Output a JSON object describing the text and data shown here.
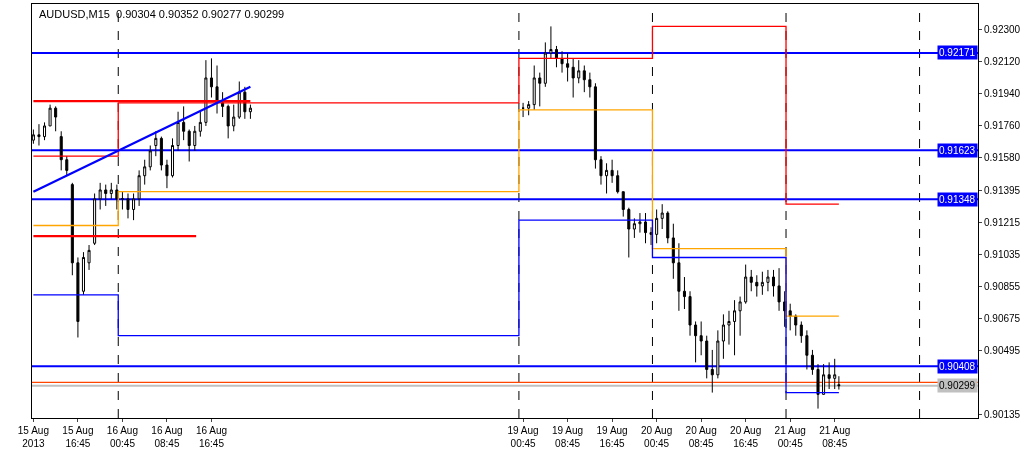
{
  "chart_data": {
    "type": "candlestick",
    "title": "AUDUSD,M15  0.90304 0.90352 0.90277 0.90299",
    "xlim": [
      "2013-08-15T08:30",
      "2013-08-22T10:30"
    ],
    "xticks": [
      {
        "value": "2013-08-15T08:45",
        "label": "15 Aug 2013"
      },
      {
        "value": "2013-08-15T16:45",
        "label": "15 Aug 16:45"
      },
      {
        "value": "2013-08-16T00:45",
        "label": "16 Aug 00:45"
      },
      {
        "value": "2013-08-16T08:45",
        "label": "16 Aug 08:45"
      },
      {
        "value": "2013-08-16T16:45",
        "label": "16 Aug 16:45"
      },
      {
        "value": "2013-08-19T00:45",
        "label": "19 Aug 00:45"
      },
      {
        "value": "2013-08-19T08:45",
        "label": "19 Aug 08:45"
      },
      {
        "value": "2013-08-19T16:45",
        "label": "19 Aug 16:45"
      },
      {
        "value": "2013-08-20T00:45",
        "label": "20 Aug 00:45"
      },
      {
        "value": "2013-08-20T08:45",
        "label": "20 Aug 08:45"
      },
      {
        "value": "2013-08-20T16:45",
        "label": "20 Aug 16:45"
      },
      {
        "value": "2013-08-21T00:45",
        "label": "21 Aug 00:45"
      },
      {
        "value": "2013-08-21T08:45",
        "label": "21 Aug 08:45"
      }
    ],
    "ylim": [
      0.90117,
      0.92446
    ],
    "yticks": [
      {
        "value": 0.923,
        "label": "0.92300"
      },
      {
        "value": 0.9212,
        "label": "0.92120"
      },
      {
        "value": 0.9194,
        "label": "0.91940"
      },
      {
        "value": 0.9176,
        "label": "0.91760"
      },
      {
        "value": 0.9158,
        "label": "0.91580"
      },
      {
        "value": 0.91395,
        "label": "0.91395"
      },
      {
        "value": 0.91215,
        "label": "0.91215"
      },
      {
        "value": 0.91035,
        "label": "0.91035"
      },
      {
        "value": 0.90855,
        "label": "0.90855"
      },
      {
        "value": 0.90675,
        "label": "0.90675"
      },
      {
        "value": 0.90495,
        "label": "0.90495"
      },
      {
        "value": 0.90135,
        "label": "0.90135"
      }
    ],
    "ref_lines": [
      {
        "axis": "x",
        "value": "2013-08-16T00:00",
        "color": "#000000",
        "line_style": "dashed"
      },
      {
        "axis": "x",
        "value": "2013-08-19T00:00",
        "color": "#000000",
        "line_style": "dashed"
      },
      {
        "axis": "x",
        "value": "2013-08-20T00:00",
        "color": "#000000",
        "line_style": "dashed"
      },
      {
        "axis": "x",
        "value": "2013-08-21T00:00",
        "color": "#000000",
        "line_style": "dashed"
      },
      {
        "axis": "x",
        "value": "2013-08-22T00:00",
        "color": "#000000",
        "line_style": "dashed"
      },
      {
        "axis": "y",
        "value": 0.92171,
        "label": "0.92171",
        "color": "#0000ff",
        "line_style": "solid"
      },
      {
        "axis": "y",
        "value": 0.91623,
        "label": "0.91623",
        "color": "#0000ff",
        "line_style": "solid"
      },
      {
        "axis": "y",
        "value": 0.91348,
        "label": "0.91348",
        "color": "#0000ff",
        "line_style": "solid"
      },
      {
        "axis": "y",
        "value": 0.90408,
        "label": "0.90408",
        "color": "#0000ff",
        "line_style": "solid"
      },
      {
        "axis": "y",
        "value": 0.90317,
        "color": "#ff4500",
        "line_style": "solid"
      },
      {
        "axis": "y",
        "value": 0.90299,
        "label": "0.90299",
        "color": "#c0c0c0",
        "line_style": "solid"
      }
    ],
    "series": [
      {
        "color": "#000000",
        "x": [
          "2013-08-15T08:45",
          "2013-08-15T09:45",
          "2013-08-15T10:45",
          "2013-08-15T11:45",
          "2013-08-15T12:45",
          "2013-08-15T13:45",
          "2013-08-15T14:45",
          "2013-08-15T15:45",
          "2013-08-15T16:45",
          "2013-08-15T17:45",
          "2013-08-15T18:45",
          "2013-08-15T19:45",
          "2013-08-15T20:45",
          "2013-08-15T21:45",
          "2013-08-15T22:45",
          "2013-08-15T23:45",
          "2013-08-16T00:45",
          "2013-08-16T01:45",
          "2013-08-16T02:45",
          "2013-08-16T03:45",
          "2013-08-16T04:45",
          "2013-08-16T05:45",
          "2013-08-16T06:45",
          "2013-08-16T07:45",
          "2013-08-16T08:45",
          "2013-08-16T09:45",
          "2013-08-16T10:45",
          "2013-08-16T11:45",
          "2013-08-16T12:45",
          "2013-08-16T13:45",
          "2013-08-16T14:45",
          "2013-08-16T15:45",
          "2013-08-16T16:45",
          "2013-08-16T17:45",
          "2013-08-16T18:45",
          "2013-08-16T19:45",
          "2013-08-16T20:45",
          "2013-08-16T21:45",
          "2013-08-16T22:45",
          "2013-08-16T23:45",
          "2013-08-19T00:45",
          "2013-08-19T01:45",
          "2013-08-19T02:45",
          "2013-08-19T03:45",
          "2013-08-19T04:45",
          "2013-08-19T05:45",
          "2013-08-19T06:45",
          "2013-08-19T07:45",
          "2013-08-19T08:45",
          "2013-08-19T09:45",
          "2013-08-19T10:45",
          "2013-08-19T11:45",
          "2013-08-19T12:45",
          "2013-08-19T13:45",
          "2013-08-19T14:45",
          "2013-08-19T15:45",
          "2013-08-19T16:45",
          "2013-08-19T17:45",
          "2013-08-19T18:45",
          "2013-08-19T19:45",
          "2013-08-19T20:45",
          "2013-08-19T21:45",
          "2013-08-19T22:45",
          "2013-08-19T23:45",
          "2013-08-20T00:45",
          "2013-08-20T01:45",
          "2013-08-20T02:45",
          "2013-08-20T03:45",
          "2013-08-20T04:45",
          "2013-08-20T05:45",
          "2013-08-20T06:45",
          "2013-08-20T07:45",
          "2013-08-20T08:45",
          "2013-08-20T09:45",
          "2013-08-20T10:45",
          "2013-08-20T11:45",
          "2013-08-20T12:45",
          "2013-08-20T13:45",
          "2013-08-20T14:45",
          "2013-08-20T15:45",
          "2013-08-20T16:45",
          "2013-08-20T17:45",
          "2013-08-20T18:45",
          "2013-08-20T19:45",
          "2013-08-20T20:45",
          "2013-08-20T21:45",
          "2013-08-20T22:45",
          "2013-08-20T23:45",
          "2013-08-21T00:45",
          "2013-08-21T01:45",
          "2013-08-21T02:45",
          "2013-08-21T03:45",
          "2013-08-21T04:45",
          "2013-08-21T05:45",
          "2013-08-21T06:45",
          "2013-08-21T07:45",
          "2013-08-21T08:45",
          "2013-08-21T09:30"
        ],
        "ohlc": [
          [
            0.9168,
            0.9174,
            0.9166,
            0.9171
          ],
          [
            0.9171,
            0.9177,
            0.9165,
            0.917
          ],
          [
            0.917,
            0.9178,
            0.9168,
            0.9176
          ],
          [
            0.9176,
            0.9188,
            0.9176,
            0.9186
          ],
          [
            0.9186,
            0.9187,
            0.9173,
            0.9181
          ],
          [
            0.917,
            0.9173,
            0.9151,
            0.9157
          ],
          [
            0.9157,
            0.9159,
            0.9148,
            0.9151
          ],
          [
            0.9143,
            0.9144,
            0.9092,
            0.9099
          ],
          [
            0.9099,
            0.9102,
            0.9057,
            0.9066
          ],
          [
            0.9083,
            0.9105,
            0.9081,
            0.9102
          ],
          [
            0.9099,
            0.9109,
            0.9095,
            0.9106
          ],
          [
            0.911,
            0.9138,
            0.9109,
            0.9135
          ],
          [
            0.9135,
            0.9144,
            0.9129,
            0.914
          ],
          [
            0.914,
            0.9143,
            0.9131,
            0.9138
          ],
          [
            0.9138,
            0.9144,
            0.9135,
            0.914
          ],
          [
            0.914,
            0.9143,
            0.9129,
            0.9135
          ],
          [
            0.9135,
            0.9139,
            0.9129,
            0.9135
          ],
          [
            0.9135,
            0.9138,
            0.9124,
            0.9129
          ],
          [
            0.9129,
            0.9138,
            0.9123,
            0.9135
          ],
          [
            0.9135,
            0.9151,
            0.9131,
            0.9148
          ],
          [
            0.9148,
            0.9157,
            0.9143,
            0.9153
          ],
          [
            0.9153,
            0.9165,
            0.9151,
            0.9162
          ],
          [
            0.9165,
            0.9173,
            0.9159,
            0.9169
          ],
          [
            0.9169,
            0.917,
            0.9151,
            0.9154
          ],
          [
            0.9154,
            0.9157,
            0.9141,
            0.9148
          ],
          [
            0.9148,
            0.9169,
            0.9147,
            0.9165
          ],
          [
            0.9165,
            0.9184,
            0.9162,
            0.9178
          ],
          [
            0.9178,
            0.9187,
            0.9168,
            0.9173
          ],
          [
            0.9173,
            0.9174,
            0.9156,
            0.9165
          ],
          [
            0.9165,
            0.9176,
            0.9162,
            0.9173
          ],
          [
            0.9173,
            0.9184,
            0.917,
            0.9178
          ],
          [
            0.9178,
            0.9213,
            0.9176,
            0.9203
          ],
          [
            0.9203,
            0.9214,
            0.9192,
            0.9198
          ],
          [
            0.9198,
            0.921,
            0.9183,
            0.9189
          ],
          [
            0.9189,
            0.9195,
            0.9181,
            0.9187
          ],
          [
            0.9187,
            0.9188,
            0.9169,
            0.9176
          ],
          [
            0.9176,
            0.9188,
            0.9173,
            0.9181
          ],
          [
            0.9181,
            0.9201,
            0.918,
            0.9195
          ],
          [
            0.9195,
            0.9198,
            0.918,
            0.9184
          ],
          [
            0.9184,
            0.9188,
            0.918,
            0.9186
          ],
          [
            0.9186,
            0.9189,
            0.9181,
            0.9186
          ],
          [
            0.9186,
            0.919,
            0.9182,
            0.9188
          ],
          [
            0.9188,
            0.921,
            0.9185,
            0.9203
          ],
          [
            0.9203,
            0.9206,
            0.9187,
            0.92
          ],
          [
            0.92,
            0.9223,
            0.9198,
            0.9217
          ],
          [
            0.9217,
            0.9232,
            0.9214,
            0.9219
          ],
          [
            0.9219,
            0.9221,
            0.9209,
            0.9214
          ],
          [
            0.9214,
            0.9218,
            0.9206,
            0.9211
          ],
          [
            0.9211,
            0.9217,
            0.9201,
            0.9209
          ],
          [
            0.9209,
            0.9214,
            0.9192,
            0.9203
          ],
          [
            0.9203,
            0.9213,
            0.92,
            0.9207
          ],
          [
            0.9207,
            0.921,
            0.9195,
            0.9202
          ],
          [
            0.9202,
            0.9206,
            0.9192,
            0.9198
          ],
          [
            0.9198,
            0.92,
            0.9152,
            0.9157
          ],
          [
            0.9157,
            0.9159,
            0.9143,
            0.9148
          ],
          [
            0.9148,
            0.9155,
            0.9138,
            0.9151
          ],
          [
            0.9151,
            0.9157,
            0.9144,
            0.9148
          ],
          [
            0.9148,
            0.9151,
            0.9138,
            0.9139
          ],
          [
            0.9139,
            0.9139,
            0.9125,
            0.9129
          ],
          [
            0.9129,
            0.913,
            0.9102,
            0.9118
          ],
          [
            0.9118,
            0.9124,
            0.9113,
            0.9121
          ],
          [
            0.9121,
            0.9127,
            0.9116,
            0.9122
          ],
          [
            0.9122,
            0.9127,
            0.911,
            0.9116
          ],
          [
            0.9116,
            0.9119,
            0.9109,
            0.9115
          ],
          [
            0.9115,
            0.9129,
            0.911,
            0.9124
          ],
          [
            0.9124,
            0.9132,
            0.9118,
            0.9127
          ],
          [
            0.9127,
            0.9128,
            0.911,
            0.9113
          ],
          [
            0.9113,
            0.9121,
            0.909,
            0.9099
          ],
          [
            0.9099,
            0.911,
            0.9072,
            0.9083
          ],
          [
            0.9083,
            0.9091,
            0.9073,
            0.908
          ],
          [
            0.908,
            0.9083,
            0.9058,
            0.9064
          ],
          [
            0.9064,
            0.9066,
            0.9043,
            0.9058
          ],
          [
            0.9058,
            0.9066,
            0.9047,
            0.9055
          ],
          [
            0.9055,
            0.9058,
            0.9034,
            0.9039
          ],
          [
            0.9039,
            0.905,
            0.9026,
            0.9036
          ],
          [
            0.9036,
            0.9061,
            0.9034,
            0.9055
          ],
          [
            0.9055,
            0.907,
            0.9045,
            0.9064
          ],
          [
            0.9064,
            0.9072,
            0.9053,
            0.9066
          ],
          [
            0.9066,
            0.9078,
            0.9047,
            0.9072
          ],
          [
            0.9072,
            0.908,
            0.9058,
            0.9077
          ],
          [
            0.9077,
            0.9098,
            0.9076,
            0.9091
          ],
          [
            0.9091,
            0.9095,
            0.9083,
            0.9088
          ],
          [
            0.9088,
            0.9092,
            0.908,
            0.9086
          ],
          [
            0.9086,
            0.9094,
            0.9081,
            0.9088
          ],
          [
            0.9088,
            0.9095,
            0.9083,
            0.9091
          ],
          [
            0.9091,
            0.9095,
            0.908,
            0.9086
          ],
          [
            0.9086,
            0.9096,
            0.9072,
            0.9077
          ],
          [
            0.9077,
            0.9083,
            0.9063,
            0.9072
          ],
          [
            0.9072,
            0.9076,
            0.9061,
            0.9069
          ],
          [
            0.9069,
            0.907,
            0.9058,
            0.9064
          ],
          [
            0.9064,
            0.9066,
            0.9054,
            0.9058
          ],
          [
            0.9058,
            0.9061,
            0.9039,
            0.9047
          ],
          [
            0.9047,
            0.905,
            0.9036,
            0.9039
          ],
          [
            0.9039,
            0.9042,
            0.9017,
            0.9025
          ],
          [
            0.9025,
            0.9042,
            0.9025,
            0.9036
          ],
          [
            0.9036,
            0.9043,
            0.9028,
            0.9034
          ],
          [
            0.9034,
            0.9045,
            0.9028,
            0.9036
          ],
          [
            0.90304,
            0.90352,
            0.90277,
            0.90299
          ]
        ]
      },
      {
        "type": "step",
        "color": "#ff0000",
        "x": [
          "2013-08-15T08:45",
          "2013-08-16T00:00",
          "2013-08-19T00:00",
          "2013-08-20T00:00",
          "2013-08-21T00:00",
          "2013-08-21T09:30"
        ],
        "values": [
          0.9159,
          0.9189,
          0.9214,
          0.9232,
          0.9132,
          0.9132
        ]
      },
      {
        "type": "step",
        "color": "#ffa500",
        "x": [
          "2013-08-15T08:45",
          "2013-08-16T00:00",
          "2013-08-19T00:00",
          "2013-08-20T00:00",
          "2013-08-21T00:00",
          "2013-08-21T09:30"
        ],
        "values": [
          0.912,
          0.9139,
          0.9185,
          0.9107,
          0.9069,
          0.9069
        ]
      },
      {
        "type": "step",
        "color": "#0000ff",
        "x": [
          "2013-08-15T08:45",
          "2013-08-16T00:00",
          "2013-08-19T00:00",
          "2013-08-20T00:00",
          "2013-08-21T00:00",
          "2013-08-21T09:30"
        ],
        "values": [
          0.9081,
          0.9058,
          0.9123,
          0.9102,
          0.9026,
          0.9026
        ]
      },
      {
        "type": "line",
        "color": "#ff0000",
        "x": [
          "2013-08-15T08:45",
          "2013-08-16T23:45"
        ],
        "values": [
          0.919,
          0.919
        ]
      },
      {
        "type": "line",
        "color": "#ff0000",
        "x": [
          "2013-08-15T08:45",
          "2013-08-16T14:00"
        ],
        "values": [
          0.9114,
          0.9114
        ]
      },
      {
        "type": "line",
        "color": "#0000ff",
        "x": [
          "2013-08-15T08:45",
          "2013-08-16T23:45"
        ],
        "values": [
          0.9139,
          0.9198
        ]
      }
    ]
  }
}
